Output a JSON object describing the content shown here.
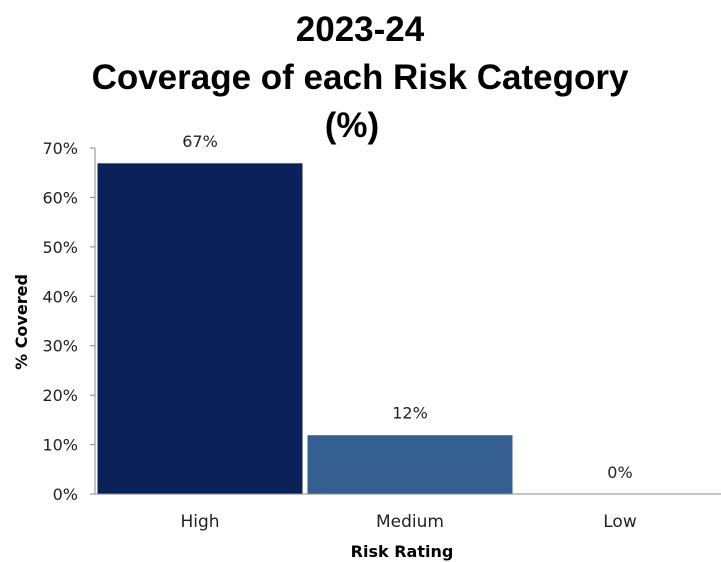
{
  "chart_data": {
    "type": "bar",
    "title_lines": [
      "2023-24",
      "Coverage of each Risk Category",
      "(%)"
    ],
    "categories": [
      "High",
      "Medium",
      "Low"
    ],
    "values": [
      67,
      12,
      0
    ],
    "data_labels": [
      "67%",
      "12%",
      "0%"
    ],
    "xlabel": "Risk Rating",
    "ylabel": "% Covered",
    "ylim": [
      0,
      70
    ],
    "y_ticks": [
      0,
      10,
      20,
      30,
      40,
      50,
      60,
      70
    ],
    "y_tick_labels": [
      "0%",
      "10%",
      "20%",
      "30%",
      "40%",
      "50%",
      "60%",
      "70%"
    ],
    "bar_colors": [
      "#0b2159",
      "#355e91",
      "#355e91"
    ],
    "grid": false,
    "legend": "none"
  }
}
